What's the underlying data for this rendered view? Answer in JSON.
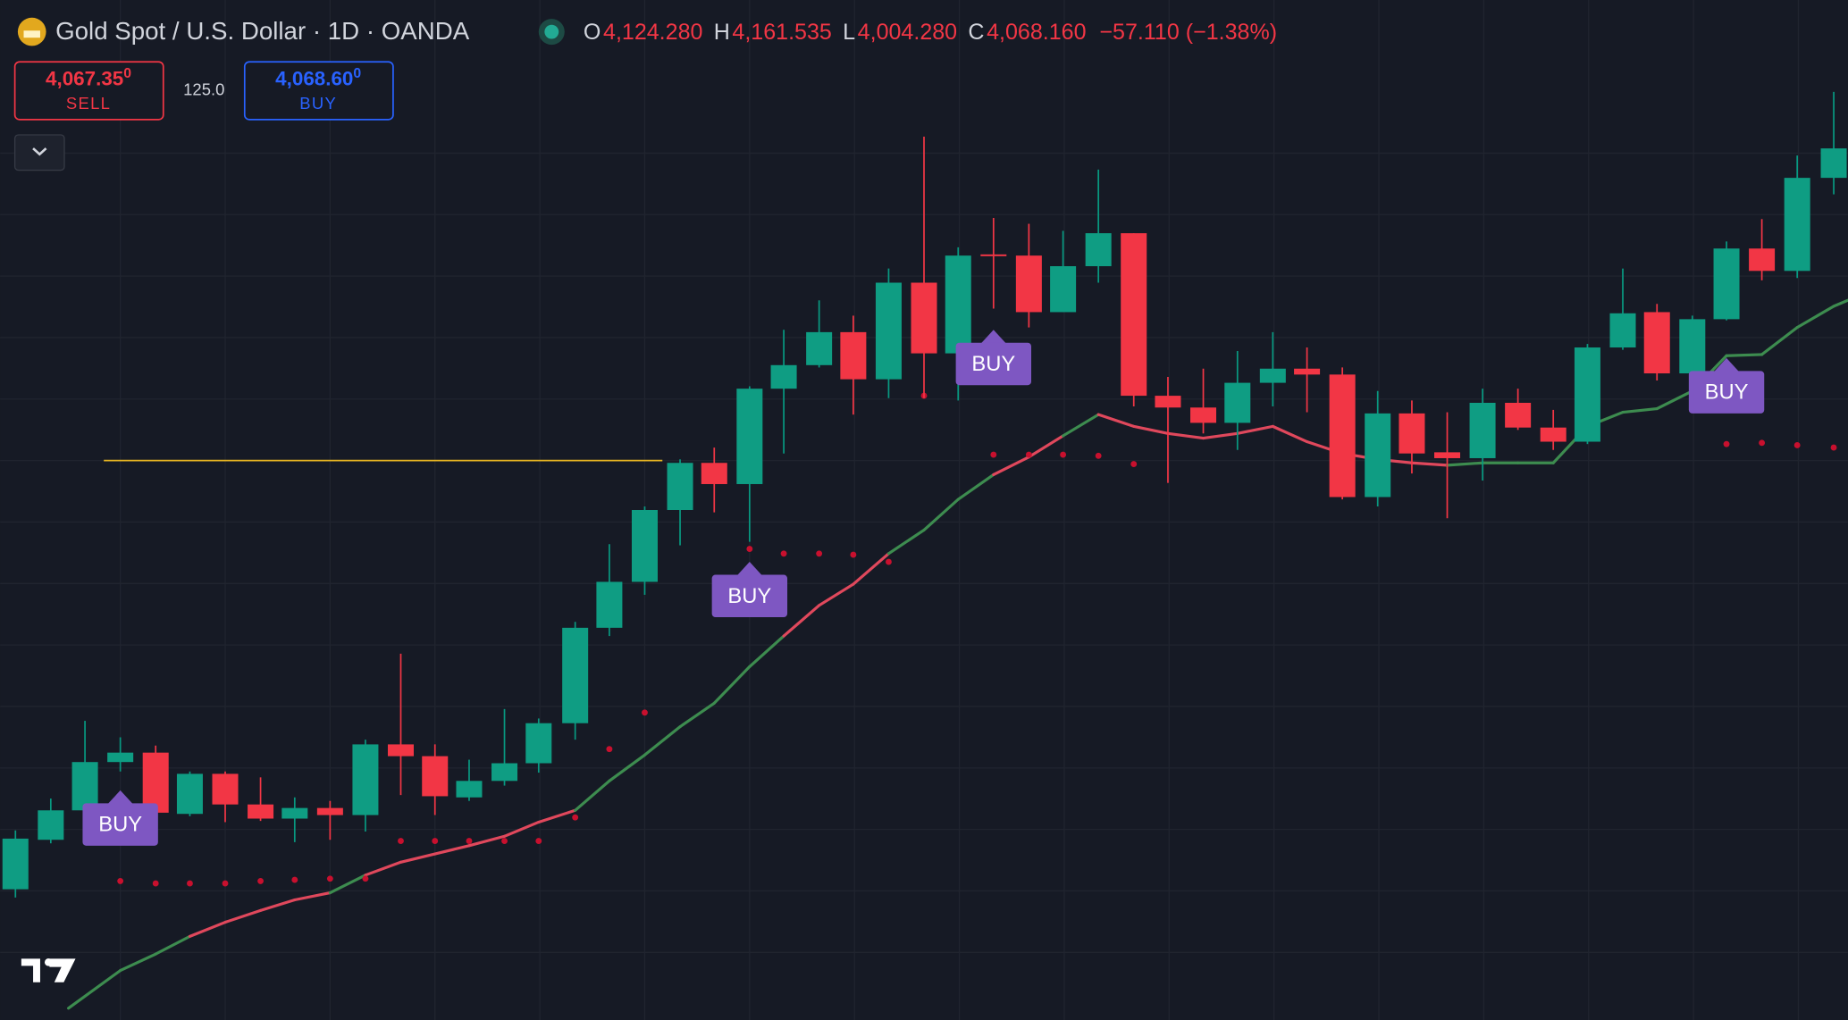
{
  "header": {
    "symbol": "Gold Spot / U.S. Dollar · 1D · OANDA",
    "ohlc": [
      {
        "key": "O",
        "value": "4,124.280"
      },
      {
        "key": "H",
        "value": "4,161.535"
      },
      {
        "key": "L",
        "value": "4,004.280"
      },
      {
        "key": "C",
        "value": "4,068.160"
      }
    ],
    "change": "−57.110 (−1.38%)"
  },
  "trade": {
    "sell": {
      "price": "4,067.35",
      "pip": "0",
      "label": "SELL"
    },
    "spread": "125.0",
    "buy": {
      "price": "4,068.60",
      "pip": "0",
      "label": "BUY"
    }
  },
  "signals": [
    "BUY",
    "BUY",
    "BUY",
    "BUY"
  ]
}
